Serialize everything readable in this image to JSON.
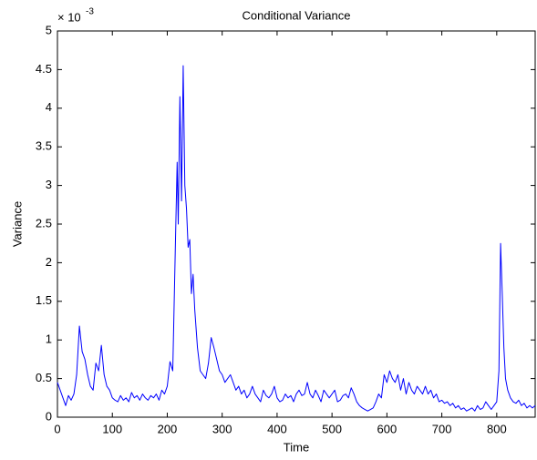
{
  "chart_data": {
    "type": "line",
    "title": "Conditional Variance",
    "x_label": "Time",
    "y_label": "Variance",
    "y_multiplier_base": "× 10",
    "y_multiplier_exponent": "-3",
    "xlim": [
      0,
      870
    ],
    "xticks": [
      0,
      100,
      200,
      300,
      400,
      500,
      600,
      700,
      800
    ],
    "ylim": [
      0,
      5
    ],
    "yticks": [
      0,
      0.5,
      1,
      1.5,
      2,
      2.5,
      3,
      3.5,
      4,
      4.5,
      5
    ],
    "x": [
      0,
      5,
      10,
      15,
      20,
      25,
      30,
      35,
      40,
      45,
      50,
      55,
      60,
      65,
      70,
      75,
      80,
      85,
      90,
      95,
      100,
      105,
      110,
      115,
      120,
      125,
      130,
      135,
      140,
      145,
      150,
      155,
      160,
      165,
      170,
      175,
      180,
      185,
      190,
      195,
      200,
      205,
      210,
      215,
      218,
      220,
      223,
      226,
      229,
      232,
      235,
      238,
      241,
      244,
      247,
      250,
      255,
      260,
      265,
      270,
      275,
      280,
      285,
      290,
      295,
      300,
      305,
      310,
      315,
      320,
      325,
      330,
      335,
      340,
      345,
      350,
      355,
      360,
      365,
      370,
      375,
      380,
      385,
      390,
      395,
      400,
      405,
      410,
      415,
      420,
      425,
      430,
      435,
      440,
      445,
      450,
      455,
      460,
      465,
      470,
      475,
      480,
      485,
      490,
      495,
      500,
      505,
      510,
      515,
      520,
      525,
      530,
      535,
      540,
      545,
      550,
      555,
      560,
      565,
      570,
      575,
      580,
      585,
      590,
      595,
      600,
      605,
      610,
      615,
      620,
      625,
      630,
      635,
      640,
      645,
      650,
      655,
      660,
      665,
      670,
      675,
      680,
      685,
      690,
      695,
      700,
      705,
      710,
      715,
      720,
      725,
      730,
      735,
      740,
      745,
      750,
      755,
      760,
      765,
      770,
      775,
      780,
      785,
      790,
      795,
      800,
      804,
      807,
      810,
      813,
      816,
      820,
      825,
      830,
      835,
      840,
      845,
      850,
      855,
      860,
      865,
      870
    ],
    "series": [
      {
        "name": "Conditional Variance",
        "color": "#0000ff",
        "values": [
          0.45,
          0.35,
          0.25,
          0.15,
          0.28,
          0.22,
          0.3,
          0.55,
          1.18,
          0.85,
          0.75,
          0.55,
          0.4,
          0.35,
          0.7,
          0.6,
          0.93,
          0.55,
          0.4,
          0.35,
          0.25,
          0.22,
          0.2,
          0.28,
          0.22,
          0.25,
          0.2,
          0.32,
          0.25,
          0.28,
          0.22,
          0.3,
          0.25,
          0.22,
          0.28,
          0.25,
          0.3,
          0.22,
          0.35,
          0.3,
          0.4,
          0.72,
          0.6,
          2.3,
          3.3,
          2.5,
          4.15,
          2.8,
          4.55,
          3.0,
          2.7,
          2.2,
          2.3,
          1.6,
          1.85,
          1.4,
          0.9,
          0.6,
          0.55,
          0.5,
          0.7,
          1.03,
          0.9,
          0.75,
          0.6,
          0.55,
          0.45,
          0.5,
          0.55,
          0.45,
          0.35,
          0.4,
          0.3,
          0.35,
          0.25,
          0.3,
          0.4,
          0.3,
          0.25,
          0.2,
          0.35,
          0.28,
          0.25,
          0.3,
          0.4,
          0.25,
          0.2,
          0.22,
          0.3,
          0.25,
          0.28,
          0.2,
          0.3,
          0.35,
          0.28,
          0.3,
          0.45,
          0.3,
          0.25,
          0.35,
          0.28,
          0.2,
          0.35,
          0.3,
          0.25,
          0.3,
          0.35,
          0.2,
          0.22,
          0.28,
          0.3,
          0.25,
          0.38,
          0.3,
          0.2,
          0.15,
          0.12,
          0.1,
          0.08,
          0.1,
          0.12,
          0.2,
          0.3,
          0.25,
          0.55,
          0.45,
          0.6,
          0.5,
          0.45,
          0.55,
          0.35,
          0.5,
          0.3,
          0.45,
          0.35,
          0.3,
          0.4,
          0.35,
          0.3,
          0.4,
          0.3,
          0.35,
          0.25,
          0.3,
          0.2,
          0.22,
          0.18,
          0.2,
          0.15,
          0.18,
          0.12,
          0.15,
          0.1,
          0.12,
          0.08,
          0.1,
          0.12,
          0.08,
          0.15,
          0.1,
          0.12,
          0.2,
          0.15,
          0.1,
          0.15,
          0.2,
          0.6,
          2.25,
          1.6,
          0.9,
          0.5,
          0.35,
          0.25,
          0.2,
          0.18,
          0.22,
          0.15,
          0.18,
          0.12,
          0.15,
          0.12,
          0.15
        ]
      }
    ]
  }
}
